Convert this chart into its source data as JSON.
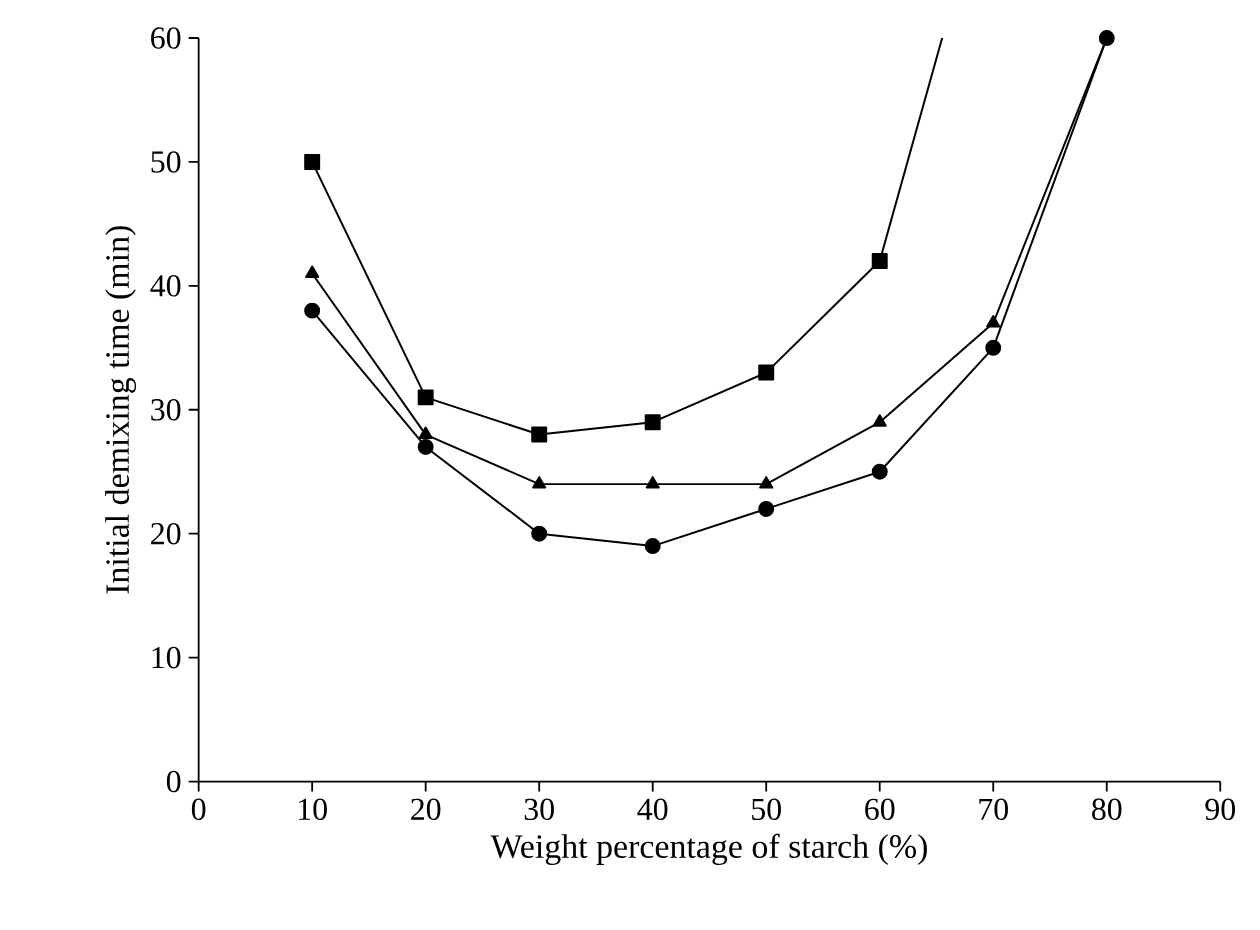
{
  "chart_data": {
    "type": "line",
    "xlabel": "Weight percentage of starch (%)",
    "ylabel": "Initial demixing time (min)",
    "xlim": [
      0,
      90
    ],
    "xticks": [
      0,
      10,
      20,
      30,
      40,
      50,
      60,
      70,
      80,
      90
    ],
    "ylim": [
      0,
      60
    ],
    "yticks": [
      0,
      10,
      20,
      30,
      40,
      50,
      60
    ],
    "series": [
      {
        "color": "#000000",
        "marker": "square",
        "x": [
          10,
          20,
          30,
          40,
          50,
          60
        ],
        "values": [
          50,
          31,
          28,
          29,
          33,
          42
        ]
      },
      {
        "color": "#000000",
        "marker": "none",
        "x": [
          60,
          65.5
        ],
        "values": [
          42,
          60
        ]
      },
      {
        "color": "#000000",
        "marker": "triangle",
        "x": [
          10,
          20,
          30,
          40,
          50,
          60,
          70,
          80
        ],
        "values": [
          41,
          28,
          24,
          24,
          24,
          29,
          37,
          60
        ]
      },
      {
        "color": "#000000",
        "marker": "circle",
        "x": [
          10,
          20,
          30,
          40,
          50,
          60,
          70,
          80
        ],
        "values": [
          38,
          27,
          20,
          19,
          22,
          25,
          35,
          60
        ]
      }
    ]
  }
}
